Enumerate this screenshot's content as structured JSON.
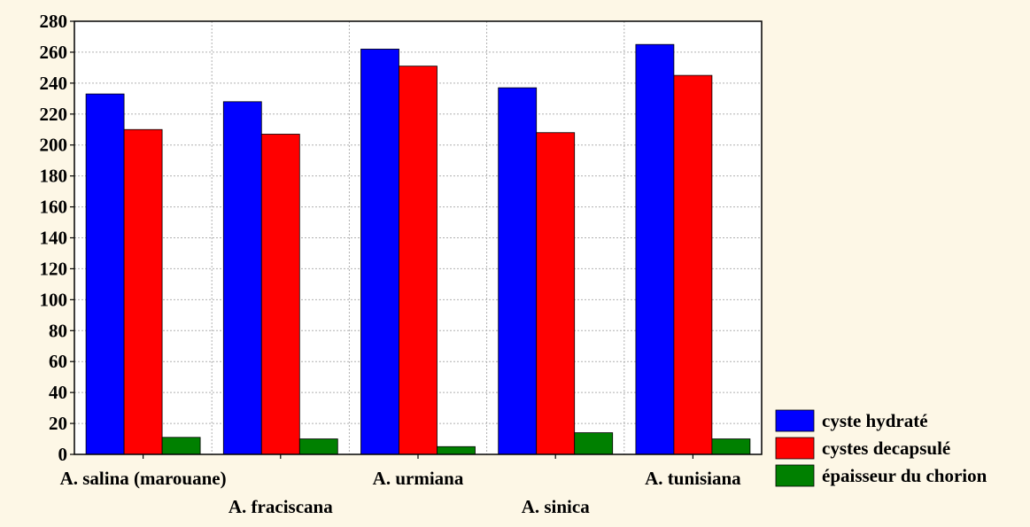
{
  "chart_data": {
    "type": "bar",
    "title": "",
    "xlabel": "",
    "ylabel": "",
    "categories": [
      "A. salina (marouane)",
      "A. fraciscana",
      "A. urmiana",
      "A. sinica",
      "A. tunisiana"
    ],
    "series": [
      {
        "name": "cyste hydraté",
        "color": "#0000ff",
        "values": [
          233,
          228,
          262,
          237,
          265
        ]
      },
      {
        "name": "cystes decapsulé",
        "color": "#ff0000",
        "values": [
          210,
          207,
          251,
          208,
          245
        ]
      },
      {
        "name": "épaisseur du chorion",
        "color": "#008000",
        "values": [
          11,
          10,
          5,
          14,
          10
        ]
      }
    ],
    "ylim": [
      0,
      280
    ],
    "yticks": [
      0,
      20,
      40,
      60,
      80,
      100,
      120,
      140,
      160,
      180,
      200,
      220,
      240,
      260,
      280
    ],
    "grid": true,
    "legend_position": "bottom-right",
    "background_color": "#fdf7e6",
    "plot_background_color": "#ffffff"
  }
}
